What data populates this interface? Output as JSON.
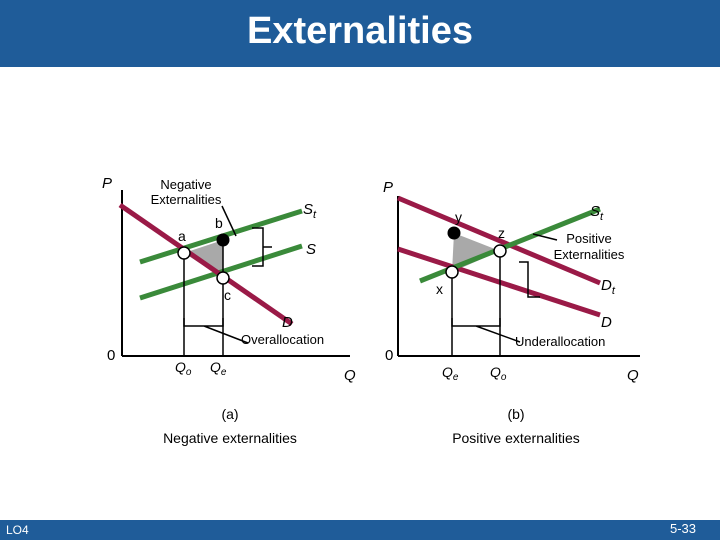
{
  "slide": {
    "title": "Externalities",
    "lo": "LO4",
    "page": "5-33"
  },
  "panel_a": {
    "p_label": "P",
    "q_label": "Q",
    "origin": "0",
    "heading": "Negative\nExternalities",
    "st_label": "St",
    "s_label": "S",
    "d_label": "D",
    "point_a": "a",
    "point_b": "b",
    "point_c": "c",
    "qo": "Qo",
    "qe": "Qe",
    "gap_label": "Overallocation",
    "caption_1": "(a)",
    "caption_2": "Negative externalities"
  },
  "panel_b": {
    "p_label": "P",
    "q_label": "Q",
    "origin": "0",
    "heading": "Positive\nExternalities",
    "st_label": "St",
    "dt_label": "Dt",
    "d_label": "D",
    "point_x": "x",
    "point_y": "y",
    "point_z": "z",
    "qe": "Qe",
    "qo": "Qo",
    "gap_label": "Underallocation",
    "caption_1": "(b)",
    "caption_2": "Positive externalities"
  },
  "colors": {
    "header": "#1f5c99",
    "supply_line": "#3a8a3a",
    "demand_line": "#9a1a47",
    "triangle": "#a9a9a9"
  }
}
